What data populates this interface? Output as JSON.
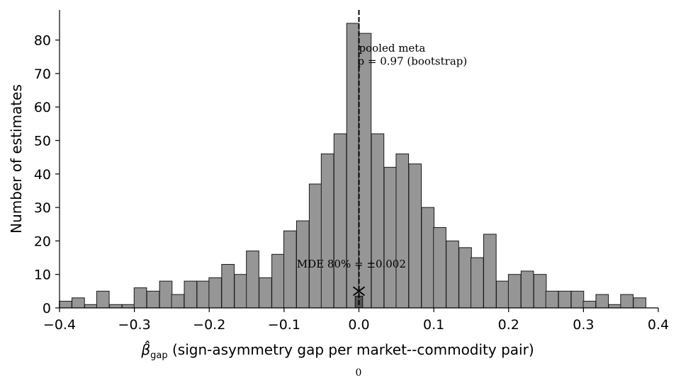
{
  "chart_data": {
    "type": "bar",
    "bin_width": 0.0167,
    "bins": [
      {
        "x": -0.392,
        "count": 2
      },
      {
        "x": -0.375,
        "count": 3
      },
      {
        "x": -0.358,
        "count": 1
      },
      {
        "x": -0.342,
        "count": 5
      },
      {
        "x": -0.325,
        "count": 1
      },
      {
        "x": -0.308,
        "count": 1
      },
      {
        "x": -0.292,
        "count": 6
      },
      {
        "x": -0.275,
        "count": 5
      },
      {
        "x": -0.258,
        "count": 8
      },
      {
        "x": -0.242,
        "count": 4
      },
      {
        "x": -0.225,
        "count": 8
      },
      {
        "x": -0.208,
        "count": 8
      },
      {
        "x": -0.192,
        "count": 9
      },
      {
        "x": -0.175,
        "count": 13
      },
      {
        "x": -0.158,
        "count": 10
      },
      {
        "x": -0.142,
        "count": 17
      },
      {
        "x": -0.125,
        "count": 9
      },
      {
        "x": -0.108,
        "count": 16
      },
      {
        "x": -0.092,
        "count": 23
      },
      {
        "x": -0.075,
        "count": 26
      },
      {
        "x": -0.058,
        "count": 37
      },
      {
        "x": -0.042,
        "count": 46
      },
      {
        "x": -0.025,
        "count": 52
      },
      {
        "x": -0.008,
        "count": 85
      },
      {
        "x": 0.008,
        "count": 82
      },
      {
        "x": 0.025,
        "count": 52
      },
      {
        "x": 0.042,
        "count": 42
      },
      {
        "x": 0.058,
        "count": 46
      },
      {
        "x": 0.075,
        "count": 43
      },
      {
        "x": 0.092,
        "count": 30
      },
      {
        "x": 0.108,
        "count": 24
      },
      {
        "x": 0.125,
        "count": 20
      },
      {
        "x": 0.142,
        "count": 18
      },
      {
        "x": 0.158,
        "count": 15
      },
      {
        "x": 0.175,
        "count": 22
      },
      {
        "x": 0.192,
        "count": 8
      },
      {
        "x": 0.208,
        "count": 10
      },
      {
        "x": 0.225,
        "count": 11
      },
      {
        "x": 0.242,
        "count": 10
      },
      {
        "x": 0.258,
        "count": 5
      },
      {
        "x": 0.275,
        "count": 5
      },
      {
        "x": 0.292,
        "count": 5
      },
      {
        "x": 0.308,
        "count": 2
      },
      {
        "x": 0.325,
        "count": 4
      },
      {
        "x": 0.342,
        "count": 1
      },
      {
        "x": 0.358,
        "count": 4
      },
      {
        "x": 0.375,
        "count": 3
      }
    ],
    "xlim": [
      -0.4,
      0.4
    ],
    "ylim": [
      0,
      89
    ],
    "xticks": [
      -0.4,
      -0.3,
      -0.2,
      -0.1,
      0.0,
      0.1,
      0.2,
      0.3,
      0.4
    ],
    "xtick_labels": [
      "−0.4",
      "−0.3",
      "−0.2",
      "−0.1",
      "0.0",
      "0.1",
      "0.2",
      "0.3",
      "0.4"
    ],
    "yticks": [
      0,
      10,
      20,
      30,
      40,
      50,
      60,
      70,
      80
    ],
    "xlabel_symbol": "β̂",
    "xlabel_subscript": "gap",
    "xlabel_text": " (sign-asymmetry gap per market--commodity pair)",
    "ylabel": "Number of estimates",
    "pooled_line_x": 0.0,
    "annotation_line1": "pooled meta",
    "annotation_line2": "p = 0.97 (bootstrap)",
    "mde_label": "MDE 80% = ±0.002",
    "mde_marker_x": 0.0,
    "mde_marker_y": 5,
    "mde_bar_x": 0.0,
    "mde_bar_count": 3.5,
    "mde_bar_width": 0.01,
    "footnote": "0",
    "grid": false,
    "bar_color": "#969696",
    "edge_color": "#1a1a1a"
  }
}
